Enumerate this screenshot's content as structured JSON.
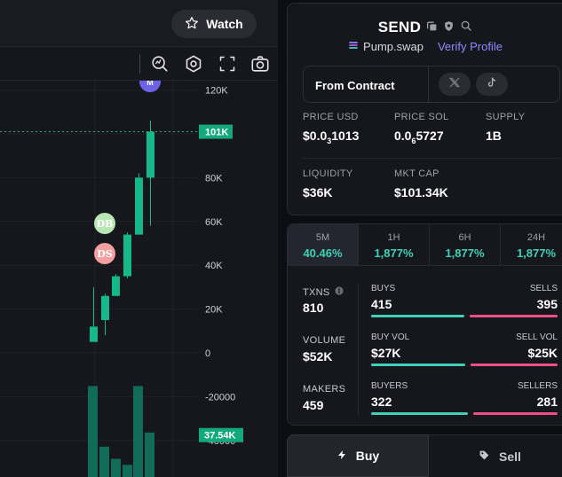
{
  "header": {
    "watch_label": "Watch"
  },
  "chart": {
    "price_badge": "101K",
    "volume_badge": "37.54K",
    "markers": {
      "top": "M",
      "db": "DB",
      "ds": "DS"
    }
  },
  "chart_data": {
    "type": "bar",
    "y_ticks": [
      "120K",
      "100K",
      "80K",
      "60K",
      "40K",
      "20K",
      "0",
      "-20000",
      "-40000"
    ],
    "y_values": [
      120000,
      100000,
      80000,
      60000,
      40000,
      20000,
      0,
      -20000,
      -40000
    ],
    "ylim": [
      -57000,
      127000
    ],
    "current_price": 101000,
    "current_volume_level": 37540,
    "candles": [
      {
        "o": 5000,
        "c": 12000,
        "h": 30000,
        "l": 5000
      },
      {
        "o": 15000,
        "c": 26000,
        "h": 27000,
        "l": 8000
      },
      {
        "o": 26000,
        "c": 35000,
        "h": 36000,
        "l": 26000
      },
      {
        "o": 35000,
        "c": 54000,
        "h": 55000,
        "l": 34000
      },
      {
        "o": 54000,
        "c": 80000,
        "h": 82000,
        "l": 54000
      },
      {
        "o": 80000,
        "c": 101000,
        "h": 106000,
        "l": 58000
      }
    ],
    "volume_heights": [
      45,
      15,
      9,
      6,
      45,
      22
    ]
  },
  "token": {
    "name": "SEND",
    "platform": "Pump.swap",
    "verify_label": "Verify Profile",
    "contract_label": "From Contract"
  },
  "stats": {
    "price_usd": {
      "label": "PRICE USD",
      "value_prefix": "$0.0",
      "value_sub": "3",
      "value_suffix": "1013"
    },
    "price_sol": {
      "label": "PRICE SOL",
      "value_prefix": "0.0",
      "value_sub": "6",
      "value_suffix": "5727"
    },
    "supply": {
      "label": "SUPPLY",
      "value": "1B"
    },
    "liquidity": {
      "label": "LIQUIDITY",
      "value": "$36K"
    },
    "mkt_cap": {
      "label": "MKT CAP",
      "value": "$101.34K"
    }
  },
  "timeframes": [
    {
      "label": "5M",
      "value": "40.46%"
    },
    {
      "label": "1H",
      "value": "1,877%"
    },
    {
      "label": "6H",
      "value": "1,877%"
    },
    {
      "label": "24H",
      "value": "1,877%"
    }
  ],
  "metrics": {
    "txns": {
      "label": "TXNS",
      "value": "810"
    },
    "volume": {
      "label": "VOLUME",
      "value": "$52K"
    },
    "makers": {
      "label": "MAKERS",
      "value": "459"
    },
    "buys": {
      "label": "BUYS",
      "value": "415"
    },
    "sells": {
      "label": "SELLS",
      "value": "395"
    },
    "buy_vol": {
      "label": "BUY VOL",
      "value": "$27K"
    },
    "sell_vol": {
      "label": "SELL VOL",
      "value": "$25K"
    },
    "buyers": {
      "label": "BUYERS",
      "value": "322"
    },
    "sellers": {
      "label": "SELLERS",
      "value": "281"
    }
  },
  "ratios": {
    "buys": 0.512,
    "buy_vol": 0.52,
    "buyers": 0.534
  },
  "trade": {
    "buy_label": "Buy",
    "sell_label": "Sell"
  },
  "colors": {
    "accent": "#3fd1b7",
    "sell": "#f04e85",
    "candle": "#14b88a",
    "link": "#8a8cff"
  }
}
